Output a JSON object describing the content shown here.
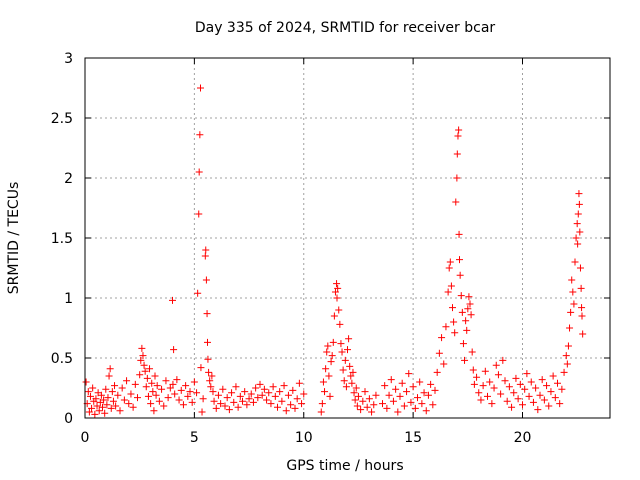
{
  "chart_data": {
    "type": "scatter",
    "title": "Day 335 of 2024, SRMTID for receiver bcar",
    "xlabel": "GPS time / hours",
    "ylabel": "SRMTID / TECUs",
    "xlim": [
      0,
      24
    ],
    "ylim": [
      0,
      3
    ],
    "xticks": [
      0,
      5,
      10,
      15,
      20
    ],
    "yticks": [
      0,
      0.5,
      1,
      1.5,
      2,
      2.5,
      3
    ],
    "xtick_labels": [
      "0",
      "5",
      "10",
      "15",
      "20"
    ],
    "ytick_labels": [
      "0",
      "0.5",
      "1",
      "1.5",
      "2",
      "2.5",
      "3"
    ],
    "grid": true,
    "marker": "+",
    "color": "#ff0000",
    "series": [
      {
        "name": "SRMTID",
        "points": [
          [
            0.05,
            0.3
          ],
          [
            0.1,
            0.12
          ],
          [
            0.15,
            0.22
          ],
          [
            0.2,
            0.05
          ],
          [
            0.25,
            0.18
          ],
          [
            0.3,
            0.08
          ],
          [
            0.35,
            0.25
          ],
          [
            0.4,
            0.14
          ],
          [
            0.45,
            0.03
          ],
          [
            0.5,
            0.16
          ],
          [
            0.55,
            0.1
          ],
          [
            0.6,
            0.21
          ],
          [
            0.65,
            0.06
          ],
          [
            0.7,
            0.13
          ],
          [
            0.75,
            0.19
          ],
          [
            0.8,
            0.09
          ],
          [
            0.85,
            0.15
          ],
          [
            0.9,
            0.04
          ],
          [
            0.95,
            0.24
          ],
          [
            1.0,
            0.11
          ],
          [
            1.05,
            0.17
          ],
          [
            1.1,
            0.35
          ],
          [
            1.15,
            0.41
          ],
          [
            1.2,
            0.08
          ],
          [
            1.25,
            0.22
          ],
          [
            1.3,
            0.14
          ],
          [
            1.35,
            0.27
          ],
          [
            1.4,
            0.1
          ],
          [
            1.5,
            0.19
          ],
          [
            1.6,
            0.06
          ],
          [
            1.7,
            0.25
          ],
          [
            1.8,
            0.15
          ],
          [
            1.9,
            0.31
          ],
          [
            2.0,
            0.12
          ],
          [
            2.1,
            0.2
          ],
          [
            2.2,
            0.09
          ],
          [
            2.3,
            0.28
          ],
          [
            2.4,
            0.17
          ],
          [
            2.5,
            0.36
          ],
          [
            2.55,
            0.48
          ],
          [
            2.6,
            0.58
          ],
          [
            2.65,
            0.52
          ],
          [
            2.7,
            0.44
          ],
          [
            2.75,
            0.39
          ],
          [
            2.8,
            0.26
          ],
          [
            2.85,
            0.33
          ],
          [
            2.9,
            0.18
          ],
          [
            2.95,
            0.41
          ],
          [
            3.0,
            0.12
          ],
          [
            3.05,
            0.29
          ],
          [
            3.1,
            0.22
          ],
          [
            3.15,
            0.06
          ],
          [
            3.2,
            0.35
          ],
          [
            3.25,
            0.19
          ],
          [
            3.3,
            0.27
          ],
          [
            3.4,
            0.14
          ],
          [
            3.5,
            0.24
          ],
          [
            3.6,
            0.1
          ],
          [
            3.7,
            0.31
          ],
          [
            3.8,
            0.17
          ],
          [
            3.9,
            0.25
          ],
          [
            4.0,
            0.98
          ],
          [
            4.02,
            0.28
          ],
          [
            4.05,
            0.57
          ],
          [
            4.1,
            0.2
          ],
          [
            4.2,
            0.32
          ],
          [
            4.3,
            0.15
          ],
          [
            4.4,
            0.23
          ],
          [
            4.5,
            0.11
          ],
          [
            4.6,
            0.27
          ],
          [
            4.7,
            0.18
          ],
          [
            4.8,
            0.22
          ],
          [
            4.9,
            0.13
          ],
          [
            5.0,
            0.3
          ],
          [
            5.1,
            0.21
          ],
          [
            5.15,
            1.04
          ],
          [
            5.2,
            1.7
          ],
          [
            5.22,
            2.05
          ],
          [
            5.25,
            2.36
          ],
          [
            5.28,
            2.75
          ],
          [
            5.3,
            0.42
          ],
          [
            5.35,
            0.05
          ],
          [
            5.4,
            0.16
          ],
          [
            5.5,
            1.35
          ],
          [
            5.52,
            1.4
          ],
          [
            5.55,
            1.15
          ],
          [
            5.58,
            0.87
          ],
          [
            5.6,
            0.63
          ],
          [
            5.62,
            0.49
          ],
          [
            5.65,
            0.38
          ],
          [
            5.7,
            0.31
          ],
          [
            5.75,
            0.26
          ],
          [
            5.8,
            0.35
          ],
          [
            5.85,
            0.22
          ],
          [
            5.9,
            0.14
          ],
          [
            6.0,
            0.08
          ],
          [
            6.1,
            0.19
          ],
          [
            6.2,
            0.12
          ],
          [
            6.3,
            0.24
          ],
          [
            6.4,
            0.1
          ],
          [
            6.5,
            0.17
          ],
          [
            6.6,
            0.07
          ],
          [
            6.7,
            0.21
          ],
          [
            6.8,
            0.13
          ],
          [
            6.9,
            0.26
          ],
          [
            7.0,
            0.09
          ],
          [
            7.1,
            0.18
          ],
          [
            7.2,
            0.14
          ],
          [
            7.3,
            0.22
          ],
          [
            7.4,
            0.11
          ],
          [
            7.5,
            0.16
          ],
          [
            7.6,
            0.2
          ],
          [
            7.7,
            0.13
          ],
          [
            7.8,
            0.25
          ],
          [
            7.9,
            0.17
          ],
          [
            8.0,
            0.28
          ],
          [
            8.1,
            0.19
          ],
          [
            8.2,
            0.24
          ],
          [
            8.3,
            0.15
          ],
          [
            8.4,
            0.21
          ],
          [
            8.5,
            0.12
          ],
          [
            8.6,
            0.26
          ],
          [
            8.7,
            0.18
          ],
          [
            8.8,
            0.09
          ],
          [
            8.9,
            0.22
          ],
          [
            9.0,
            0.14
          ],
          [
            9.1,
            0.27
          ],
          [
            9.2,
            0.06
          ],
          [
            9.3,
            0.19
          ],
          [
            9.4,
            0.11
          ],
          [
            9.5,
            0.23
          ],
          [
            9.6,
            0.08
          ],
          [
            9.7,
            0.16
          ],
          [
            9.8,
            0.29
          ],
          [
            9.9,
            0.12
          ],
          [
            10.0,
            0.2
          ],
          [
            10.8,
            0.05
          ],
          [
            10.85,
            0.12
          ],
          [
            10.9,
            0.3
          ],
          [
            10.95,
            0.22
          ],
          [
            11.0,
            0.41
          ],
          [
            11.05,
            0.55
          ],
          [
            11.1,
            0.6
          ],
          [
            11.15,
            0.35
          ],
          [
            11.2,
            0.18
          ],
          [
            11.25,
            0.47
          ],
          [
            11.3,
            0.52
          ],
          [
            11.35,
            0.63
          ],
          [
            11.4,
            0.85
          ],
          [
            11.45,
            1.05
          ],
          [
            11.5,
            1.12
          ],
          [
            11.52,
            1.0
          ],
          [
            11.55,
            1.08
          ],
          [
            11.6,
            0.9
          ],
          [
            11.65,
            0.78
          ],
          [
            11.7,
            0.62
          ],
          [
            11.75,
            0.55
          ],
          [
            11.8,
            0.4
          ],
          [
            11.85,
            0.31
          ],
          [
            11.9,
            0.48
          ],
          [
            11.95,
            0.26
          ],
          [
            12.0,
            0.57
          ],
          [
            12.05,
            0.66
          ],
          [
            12.1,
            0.43
          ],
          [
            12.15,
            0.35
          ],
          [
            12.2,
            0.29
          ],
          [
            12.25,
            0.38
          ],
          [
            12.3,
            0.21
          ],
          [
            12.35,
            0.15
          ],
          [
            12.4,
            0.25
          ],
          [
            12.45,
            0.1
          ],
          [
            12.5,
            0.18
          ],
          [
            12.6,
            0.07
          ],
          [
            12.7,
            0.14
          ],
          [
            12.8,
            0.22
          ],
          [
            12.9,
            0.09
          ],
          [
            13.0,
            0.16
          ],
          [
            13.1,
            0.05
          ],
          [
            13.2,
            0.11
          ],
          [
            13.3,
            0.19
          ],
          [
            13.6,
            0.12
          ],
          [
            13.7,
            0.27
          ],
          [
            13.8,
            0.08
          ],
          [
            13.9,
            0.19
          ],
          [
            14.0,
            0.32
          ],
          [
            14.1,
            0.14
          ],
          [
            14.2,
            0.24
          ],
          [
            14.3,
            0.05
          ],
          [
            14.4,
            0.18
          ],
          [
            14.5,
            0.29
          ],
          [
            14.6,
            0.1
          ],
          [
            14.7,
            0.22
          ],
          [
            14.8,
            0.37
          ],
          [
            14.9,
            0.13
          ],
          [
            15.0,
            0.26
          ],
          [
            15.1,
            0.08
          ],
          [
            15.2,
            0.17
          ],
          [
            15.3,
            0.3
          ],
          [
            15.4,
            0.12
          ],
          [
            15.5,
            0.21
          ],
          [
            15.6,
            0.06
          ],
          [
            15.7,
            0.19
          ],
          [
            15.8,
            0.28
          ],
          [
            15.9,
            0.11
          ],
          [
            16.0,
            0.23
          ],
          [
            16.1,
            0.38
          ],
          [
            16.2,
            0.54
          ],
          [
            16.3,
            0.67
          ],
          [
            16.4,
            0.45
          ],
          [
            16.5,
            0.76
          ],
          [
            16.6,
            1.05
          ],
          [
            16.65,
            1.25
          ],
          [
            16.7,
            1.3
          ],
          [
            16.75,
            1.1
          ],
          [
            16.8,
            0.92
          ],
          [
            16.85,
            0.8
          ],
          [
            16.9,
            0.71
          ],
          [
            16.95,
            1.8
          ],
          [
            17.0,
            2.0
          ],
          [
            17.02,
            2.2
          ],
          [
            17.05,
            2.35
          ],
          [
            17.08,
            2.4
          ],
          [
            17.1,
            1.53
          ],
          [
            17.12,
            1.32
          ],
          [
            17.15,
            1.19
          ],
          [
            17.2,
            1.02
          ],
          [
            17.25,
            0.88
          ],
          [
            17.3,
            0.62
          ],
          [
            17.35,
            0.48
          ],
          [
            17.4,
            0.81
          ],
          [
            17.45,
            0.73
          ],
          [
            17.5,
            0.91
          ],
          [
            17.55,
            1.01
          ],
          [
            17.6,
            0.95
          ],
          [
            17.65,
            0.86
          ],
          [
            17.7,
            0.55
          ],
          [
            17.75,
            0.4
          ],
          [
            17.8,
            0.28
          ],
          [
            17.9,
            0.34
          ],
          [
            18.0,
            0.21
          ],
          [
            18.1,
            0.15
          ],
          [
            18.2,
            0.27
          ],
          [
            18.3,
            0.39
          ],
          [
            18.4,
            0.18
          ],
          [
            18.5,
            0.3
          ],
          [
            18.6,
            0.12
          ],
          [
            18.7,
            0.25
          ],
          [
            18.8,
            0.44
          ],
          [
            18.9,
            0.36
          ],
          [
            19.0,
            0.2
          ],
          [
            19.1,
            0.48
          ],
          [
            19.2,
            0.31
          ],
          [
            19.3,
            0.14
          ],
          [
            19.4,
            0.26
          ],
          [
            19.5,
            0.09
          ],
          [
            19.6,
            0.21
          ],
          [
            19.7,
            0.33
          ],
          [
            19.8,
            0.16
          ],
          [
            19.9,
            0.28
          ],
          [
            20.0,
            0.11
          ],
          [
            20.1,
            0.24
          ],
          [
            20.2,
            0.37
          ],
          [
            20.3,
            0.18
          ],
          [
            20.4,
            0.3
          ],
          [
            20.5,
            0.13
          ],
          [
            20.6,
            0.25
          ],
          [
            20.7,
            0.07
          ],
          [
            20.8,
            0.19
          ],
          [
            20.9,
            0.32
          ],
          [
            21.0,
            0.15
          ],
          [
            21.1,
            0.27
          ],
          [
            21.2,
            0.1
          ],
          [
            21.3,
            0.22
          ],
          [
            21.4,
            0.35
          ],
          [
            21.5,
            0.17
          ],
          [
            21.6,
            0.29
          ],
          [
            21.7,
            0.12
          ],
          [
            21.8,
            0.24
          ],
          [
            21.9,
            0.38
          ],
          [
            22.0,
            0.52
          ],
          [
            22.05,
            0.45
          ],
          [
            22.1,
            0.6
          ],
          [
            22.15,
            0.75
          ],
          [
            22.2,
            0.88
          ],
          [
            22.25,
            1.15
          ],
          [
            22.3,
            1.05
          ],
          [
            22.35,
            0.95
          ],
          [
            22.4,
            1.3
          ],
          [
            22.45,
            1.5
          ],
          [
            22.5,
            1.62
          ],
          [
            22.52,
            1.45
          ],
          [
            22.55,
            1.7
          ],
          [
            22.58,
            1.87
          ],
          [
            22.6,
            1.78
          ],
          [
            22.62,
            1.55
          ],
          [
            22.65,
            1.25
          ],
          [
            22.68,
            1.08
          ],
          [
            22.7,
            0.92
          ],
          [
            22.72,
            0.85
          ],
          [
            22.75,
            0.7
          ]
        ]
      }
    ]
  }
}
